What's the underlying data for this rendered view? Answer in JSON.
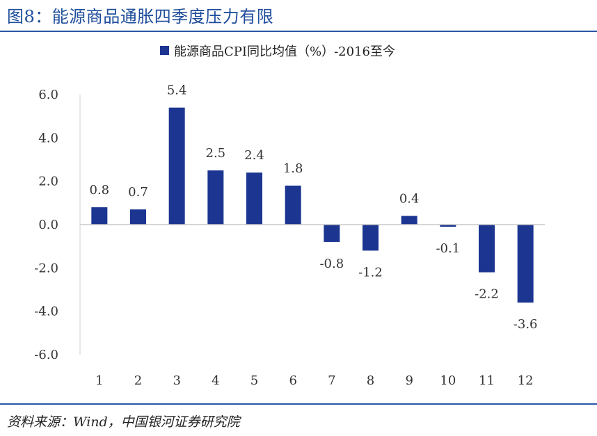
{
  "figure": {
    "title": "图8：能源商品通胀四季度压力有限",
    "source": "资料来源：Wind，中国银河证券研究院"
  },
  "colors": {
    "bar": "#1b3591",
    "rule": "#2a57a6",
    "title": "#1f4e9c"
  },
  "chart_data": {
    "type": "bar",
    "title": "",
    "legend": "能源商品CPI同比均值（%）-2016至今",
    "legend_position": "top-center",
    "xlabel": "",
    "ylabel": "",
    "categories": [
      "1",
      "2",
      "3",
      "4",
      "5",
      "6",
      "7",
      "8",
      "9",
      "10",
      "11",
      "12"
    ],
    "values": [
      0.8,
      0.7,
      5.4,
      2.5,
      2.4,
      1.8,
      -0.8,
      -1.2,
      0.4,
      -0.1,
      -2.2,
      -3.6
    ],
    "data_labels": [
      "0.8",
      "0.7",
      "5.4",
      "2.5",
      "2.4",
      "1.8",
      "-0.8",
      "-1.2",
      "0.4",
      "-0.1",
      "-2.2",
      "-3.6"
    ],
    "ylim": [
      -6,
      6
    ],
    "yticks": [
      6,
      4,
      2,
      0,
      -2,
      -4,
      -6
    ],
    "ytick_labels": [
      "6.0",
      "4.0",
      "2.0",
      "0.0",
      "-2.0",
      "-4.0",
      "-6.0"
    ],
    "grid": false
  }
}
